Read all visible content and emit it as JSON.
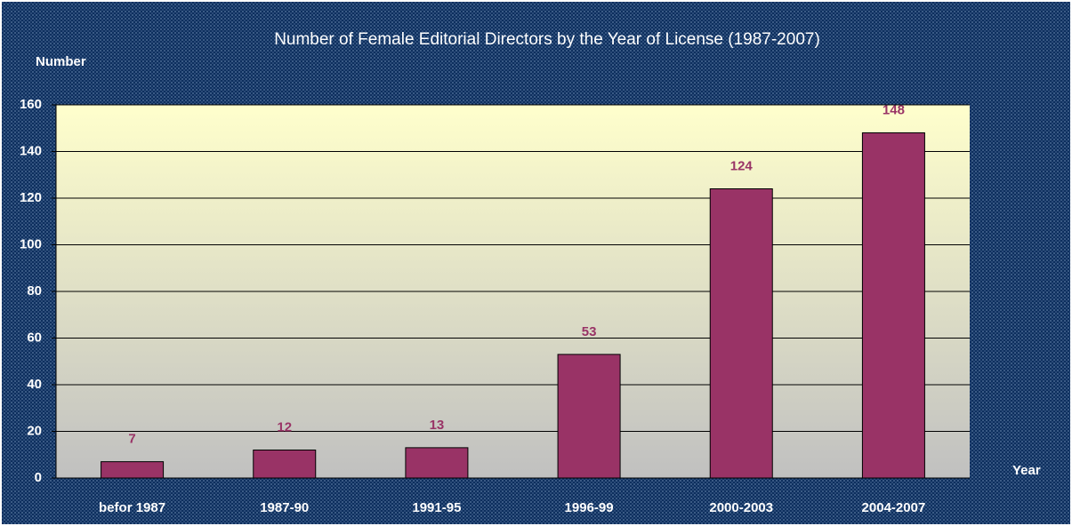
{
  "chart_data": {
    "type": "bar",
    "title": "Number of Female Editorial Directors by the Year of License (1987-2007)",
    "y_label": "Number",
    "x_label": "Year",
    "categories": [
      "befor 1987",
      "1987-90",
      "1991-95",
      "1996-99",
      "2000-2003",
      "2004-2007"
    ],
    "values": [
      7,
      12,
      13,
      53,
      124,
      148
    ],
    "color": "#993366",
    "ylim": [
      0,
      160
    ],
    "yticks": [
      0,
      20,
      40,
      60,
      80,
      100,
      120,
      140,
      160
    ],
    "grid": true
  }
}
